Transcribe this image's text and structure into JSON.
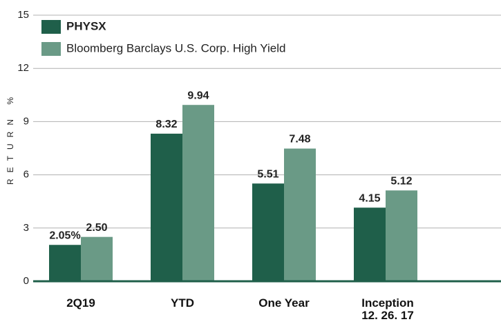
{
  "chart_data": {
    "type": "bar",
    "categories": [
      "2Q19",
      "YTD",
      "One Year",
      "Inception 12. 26. 17"
    ],
    "series": [
      {
        "name": "PHYSX",
        "color": "#1f5f4a",
        "values": [
          2.05,
          8.32,
          5.51,
          4.15
        ],
        "value_labels": [
          "2.05%",
          "8.32",
          "5.51",
          "4.15"
        ]
      },
      {
        "name": "Bloomberg Barclays U.S. Corp. High Yield",
        "color": "#6a9a86",
        "values": [
          2.5,
          9.94,
          7.48,
          5.12
        ],
        "value_labels": [
          "2.50",
          "9.94",
          "7.48",
          "5.12"
        ]
      }
    ],
    "ylabel": "RETURN %",
    "ylim": [
      0,
      15
    ],
    "yticks": [
      0,
      3,
      6,
      9,
      12,
      15
    ],
    "grid": true,
    "legend": "top-left"
  }
}
